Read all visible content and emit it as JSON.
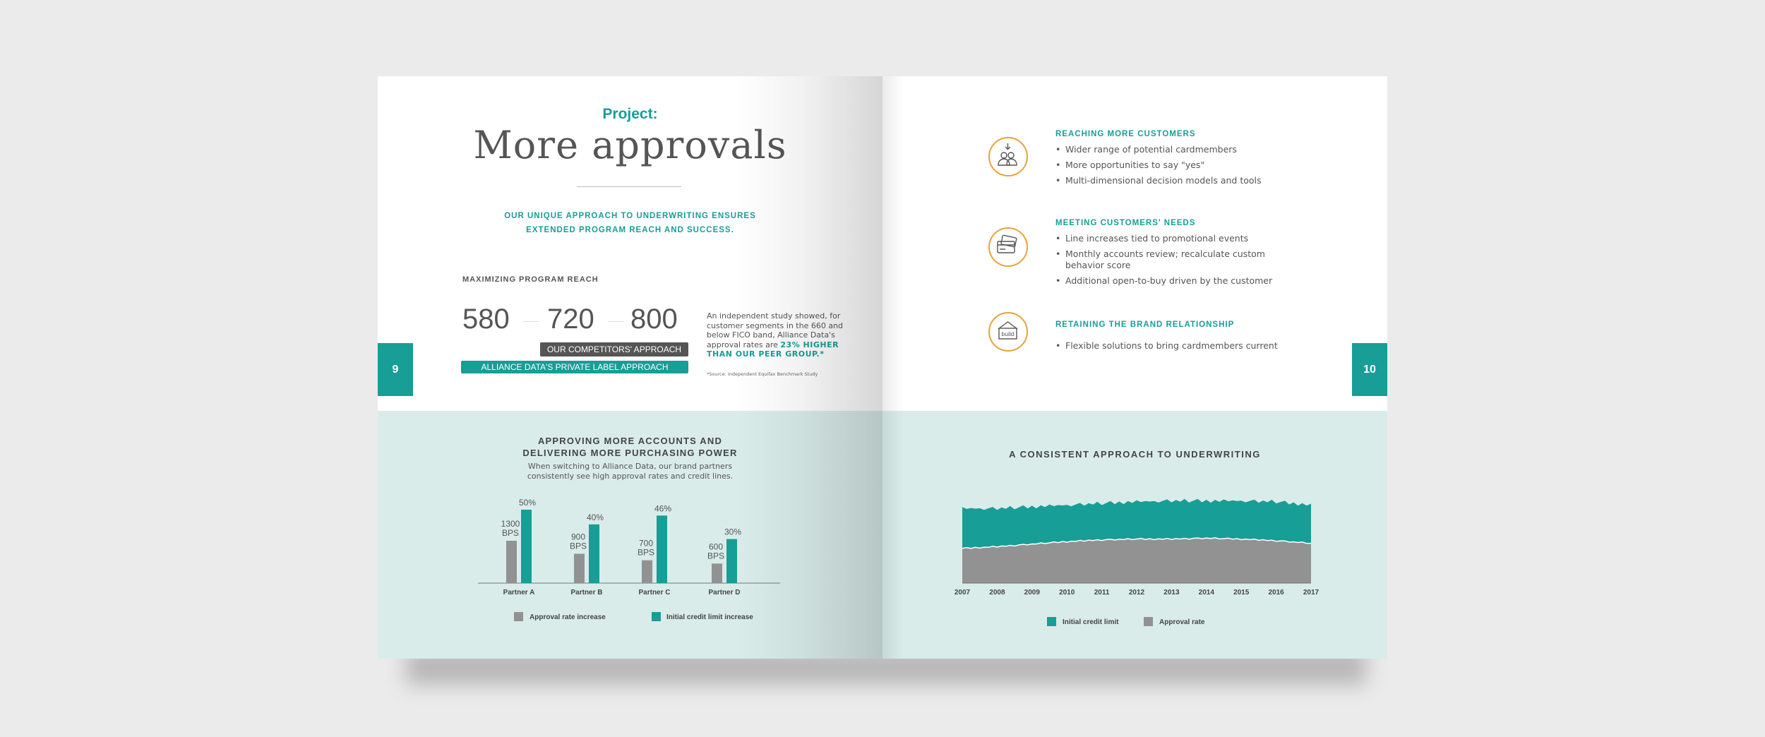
{
  "left_page": {
    "eyebrow": "Project:",
    "title": "More approvals",
    "lead_line1": "OUR UNIQUE APPROACH TO UNDERWRITING ENSURES",
    "lead_line2": "EXTENDED PROGRAM REACH AND SUCCESS.",
    "section_label": "MAXIMIZING PROGRAM REACH",
    "fico_scores": [
      "580",
      "720",
      "800"
    ],
    "competitors_label": "OUR COMPETITORS' APPROACH",
    "alliance_label": "ALLIANCE DATA'S PRIVATE LABEL APPROACH",
    "study_text": "An independent study showed, for customer segments in the 660 and below FICO band, Alliance Data's approval rates are",
    "study_highlight": "23% HIGHER THAN OUR PEER GROUP.*",
    "source": "*Source: Independent Equifax Benchmark Study",
    "page_number": "9"
  },
  "right_page": {
    "page_number": "10",
    "features": [
      {
        "icon": "people-icon",
        "title": "REACHING MORE CUSTOMERS",
        "items": [
          "Wider range of potential cardmembers",
          "More opportunities to say \"yes\"",
          "Multi-dimensional decision models and tools"
        ]
      },
      {
        "icon": "credit-cards-icon",
        "title": "MEETING CUSTOMERS' NEEDS",
        "items": [
          "Line increases tied to promotional events",
          "Monthly accounts review; recalculate custom behavior score",
          "Additional open-to-buy driven by the customer"
        ]
      },
      {
        "icon": "build-house-icon",
        "icon_text": "build",
        "title": "RETAINING THE BRAND RELATIONSHIP",
        "items": [
          "Flexible solutions to bring cardmembers current"
        ]
      }
    ]
  },
  "colors": {
    "teal": "#179e96",
    "gray": "#929292",
    "orange": "#e8a23a",
    "band": "#d9ecea"
  },
  "chart_data": [
    {
      "type": "bar",
      "title": "APPROVING MORE ACCOUNTS AND DELIVERING MORE PURCHASING POWER",
      "title_line1": "APPROVING MORE ACCOUNTS AND",
      "title_line2": "DELIVERING MORE PURCHASING POWER",
      "subtitle_line1": "When switching to Alliance Data, our brand partners",
      "subtitle_line2": "consistently see high approval rates and credit lines.",
      "categories": [
        "Partner A",
        "Partner B",
        "Partner C",
        "Partner D"
      ],
      "series": [
        {
          "name": "Approval rate increase",
          "values": [
            1300,
            900,
            700,
            600
          ],
          "labels": [
            [
              "1300",
              "BPS"
            ],
            [
              "900",
              "BPS"
            ],
            [
              "700",
              "BPS"
            ],
            [
              "600",
              "BPS"
            ]
          ]
        },
        {
          "name": "Initial credit limit increase",
          "values": [
            50,
            40,
            46,
            30
          ],
          "labels": [
            "50%",
            "40%",
            "46%",
            "30%"
          ]
        }
      ]
    },
    {
      "type": "area",
      "title": "A CONSISTENT APPROACH TO UNDERWRITING",
      "x": [
        "2007",
        "2008",
        "2009",
        "2010",
        "2011",
        "2012",
        "2013",
        "2014",
        "2015",
        "2016",
        "2017"
      ],
      "series": [
        {
          "name": "Initial credit limit",
          "values": [
            0.47,
            0.45,
            0.44,
            0.43,
            0.43,
            0.44,
            0.45,
            0.44,
            0.45,
            0.46,
            0.45
          ]
        },
        {
          "name": "Approval rate",
          "values": [
            0.41,
            0.43,
            0.46,
            0.49,
            0.51,
            0.52,
            0.52,
            0.53,
            0.52,
            0.5,
            0.47
          ]
        }
      ]
    }
  ]
}
